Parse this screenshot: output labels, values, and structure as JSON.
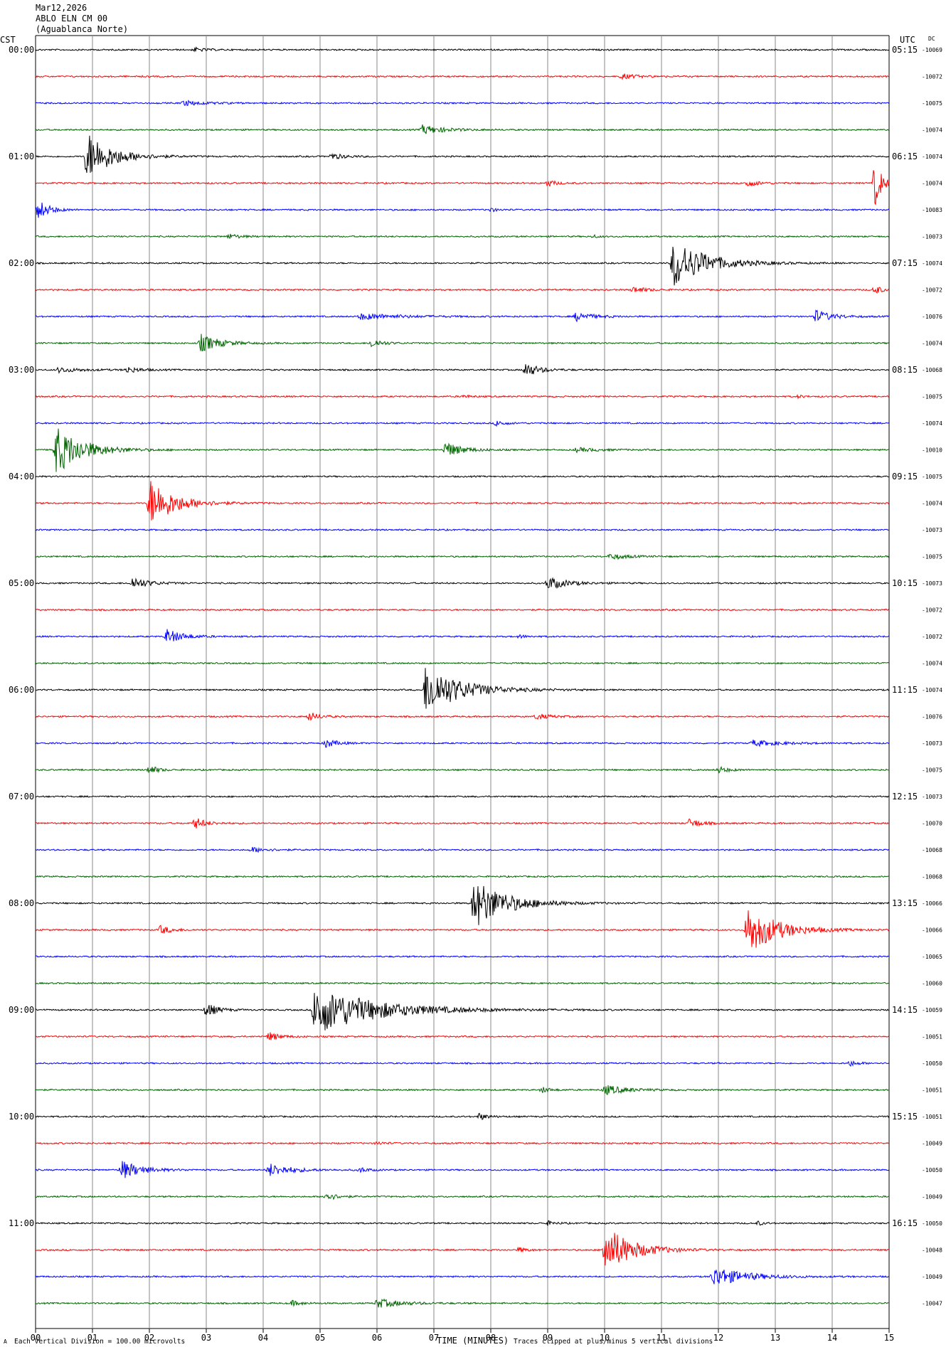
{
  "header": {
    "date": "Mar12,2026",
    "station": "ABLO ELN CM 00",
    "location": "(Aguablanca Norte)"
  },
  "left_tz_label": "CST",
  "right_tz_label": "UTC",
  "dc_label": "DC",
  "footer": {
    "scale": "Each Vertical Division =  100.00 microvolts",
    "xlabel": "TIME (MINUTES)",
    "clip_note": "Traces clipped at plus/minus 5 vertical divisions",
    "corner_mark": "A"
  },
  "chart_data": {
    "type": "line",
    "title": "",
    "xlabel": "TIME (MINUTES)",
    "ylabel": "",
    "xlim": [
      0,
      15
    ],
    "x_ticks": [
      "00",
      "01",
      "02",
      "03",
      "04",
      "05",
      "06",
      "07",
      "08",
      "09",
      "10",
      "11",
      "12",
      "13",
      "14",
      "15"
    ],
    "grid": true,
    "trace_colors": [
      "#000000",
      "#ff0000",
      "#0000ff",
      "#006400"
    ],
    "left_hour_labels": [
      "00:00",
      "01:00",
      "02:00",
      "03:00",
      "04:00",
      "05:00",
      "06:00",
      "07:00",
      "08:00",
      "09:00",
      "10:00",
      "11:00"
    ],
    "right_hour_labels": [
      "05:15",
      "06:15",
      "07:15",
      "08:15",
      "09:15",
      "10:15",
      "11:15",
      "12:15",
      "13:15",
      "14:15",
      "15:15",
      "16:15"
    ],
    "dc_offsets": [
      "-10069",
      "-10072",
      "-10075",
      "-10074",
      "-10074",
      "-10074",
      "-10083",
      "-10073",
      "-10074",
      "-10072",
      "-10076",
      "-10074",
      "-10068",
      "-10075",
      "-10074",
      "-10010",
      "-10075",
      "-10074",
      "-10073",
      "-10075",
      "-10073",
      "-10072",
      "-10072",
      "-10074",
      "-10074",
      "-10076",
      "-10073",
      "-10075",
      "-10073",
      "-10070",
      "-10068",
      "-10068",
      "-10066",
      "-10066",
      "-10065",
      "-10060",
      "-10059",
      "-10051",
      "-10050",
      "-10051",
      "-10051",
      "-10049",
      "-10050",
      "-10049",
      "-10050",
      "-10048",
      "-10049",
      "-10047"
    ],
    "events": [
      {
        "row": 0,
        "t": 2.8,
        "amp": 0.4,
        "dur": 0.4
      },
      {
        "row": 1,
        "t": 10.3,
        "amp": 0.5,
        "dur": 0.6
      },
      {
        "row": 2,
        "t": 2.6,
        "amp": 0.5,
        "dur": 0.8
      },
      {
        "row": 3,
        "t": 6.8,
        "amp": 0.9,
        "dur": 0.8
      },
      {
        "row": 4,
        "t": 0.9,
        "amp": 5.0,
        "dur": 0.9
      },
      {
        "row": 4,
        "t": 5.2,
        "amp": 0.6,
        "dur": 0.5
      },
      {
        "row": 5,
        "t": 9.0,
        "amp": 0.7,
        "dur": 0.3
      },
      {
        "row": 5,
        "t": 12.5,
        "amp": 0.8,
        "dur": 0.4
      },
      {
        "row": 5,
        "t": 14.75,
        "amp": 5.0,
        "dur": 0.25
      },
      {
        "row": 6,
        "t": 0.05,
        "amp": 2.0,
        "dur": 0.4
      },
      {
        "row": 6,
        "t": 8.0,
        "amp": 0.4,
        "dur": 0.2
      },
      {
        "row": 7,
        "t": 3.4,
        "amp": 0.5,
        "dur": 0.4
      },
      {
        "row": 7,
        "t": 9.8,
        "amp": 0.3,
        "dur": 0.2
      },
      {
        "row": 8,
        "t": 11.2,
        "amp": 5.0,
        "dur": 1.2
      },
      {
        "row": 9,
        "t": 10.5,
        "amp": 0.6,
        "dur": 0.5
      },
      {
        "row": 9,
        "t": 14.75,
        "amp": 1.2,
        "dur": 0.2
      },
      {
        "row": 10,
        "t": 5.7,
        "amp": 0.6,
        "dur": 1.5
      },
      {
        "row": 10,
        "t": 9.5,
        "amp": 0.9,
        "dur": 0.6
      },
      {
        "row": 10,
        "t": 13.7,
        "amp": 1.3,
        "dur": 0.6
      },
      {
        "row": 11,
        "t": 2.9,
        "amp": 1.8,
        "dur": 0.7
      },
      {
        "row": 11,
        "t": 5.9,
        "amp": 0.9,
        "dur": 0.4
      },
      {
        "row": 12,
        "t": 0.4,
        "amp": 0.5,
        "dur": 0.8
      },
      {
        "row": 12,
        "t": 1.6,
        "amp": 0.6,
        "dur": 0.5
      },
      {
        "row": 12,
        "t": 8.6,
        "amp": 1.5,
        "dur": 0.5
      },
      {
        "row": 13,
        "t": 7.5,
        "amp": 0.3,
        "dur": 0.3
      },
      {
        "row": 13,
        "t": 13.4,
        "amp": 0.3,
        "dur": 0.2
      },
      {
        "row": 14,
        "t": 8.1,
        "amp": 0.6,
        "dur": 0.3
      },
      {
        "row": 15,
        "t": 0.35,
        "amp": 5.0,
        "dur": 1.0
      },
      {
        "row": 15,
        "t": 7.2,
        "amp": 1.6,
        "dur": 0.6
      },
      {
        "row": 15,
        "t": 9.5,
        "amp": 0.4,
        "dur": 0.8
      },
      {
        "row": 17,
        "t": 2.0,
        "amp": 5.0,
        "dur": 0.9
      },
      {
        "row": 19,
        "t": 10.1,
        "amp": 0.6,
        "dur": 0.6
      },
      {
        "row": 20,
        "t": 1.7,
        "amp": 1.2,
        "dur": 0.6
      },
      {
        "row": 20,
        "t": 9.0,
        "amp": 1.3,
        "dur": 0.7
      },
      {
        "row": 22,
        "t": 2.3,
        "amp": 1.5,
        "dur": 0.6
      },
      {
        "row": 22,
        "t": 8.5,
        "amp": 0.3,
        "dur": 0.3
      },
      {
        "row": 24,
        "t": 6.85,
        "amp": 5.0,
        "dur": 1.3
      },
      {
        "row": 25,
        "t": 4.8,
        "amp": 0.9,
        "dur": 0.4
      },
      {
        "row": 25,
        "t": 8.8,
        "amp": 0.6,
        "dur": 0.5
      },
      {
        "row": 26,
        "t": 5.1,
        "amp": 0.9,
        "dur": 0.4
      },
      {
        "row": 26,
        "t": 12.6,
        "amp": 0.6,
        "dur": 1.0
      },
      {
        "row": 27,
        "t": 2.0,
        "amp": 1.0,
        "dur": 0.3
      },
      {
        "row": 27,
        "t": 12.0,
        "amp": 0.6,
        "dur": 0.4
      },
      {
        "row": 29,
        "t": 2.8,
        "amp": 1.2,
        "dur": 0.4
      },
      {
        "row": 29,
        "t": 11.5,
        "amp": 1.0,
        "dur": 0.4
      },
      {
        "row": 30,
        "t": 3.8,
        "amp": 0.5,
        "dur": 0.6
      },
      {
        "row": 32,
        "t": 7.7,
        "amp": 5.0,
        "dur": 1.2
      },
      {
        "row": 33,
        "t": 2.2,
        "amp": 0.9,
        "dur": 0.4
      },
      {
        "row": 33,
        "t": 12.5,
        "amp": 5.0,
        "dur": 1.1
      },
      {
        "row": 36,
        "t": 3.0,
        "amp": 1.5,
        "dur": 0.4
      },
      {
        "row": 36,
        "t": 4.9,
        "amp": 5.0,
        "dur": 2.2
      },
      {
        "row": 37,
        "t": 4.1,
        "amp": 0.9,
        "dur": 0.4
      },
      {
        "row": 38,
        "t": 14.3,
        "amp": 0.6,
        "dur": 0.3
      },
      {
        "row": 39,
        "t": 8.9,
        "amp": 0.6,
        "dur": 0.3
      },
      {
        "row": 39,
        "t": 10.0,
        "amp": 1.0,
        "dur": 0.8
      },
      {
        "row": 40,
        "t": 7.8,
        "amp": 0.7,
        "dur": 0.3
      },
      {
        "row": 41,
        "t": 6.0,
        "amp": 0.3,
        "dur": 0.3
      },
      {
        "row": 42,
        "t": 1.5,
        "amp": 2.0,
        "dur": 0.7
      },
      {
        "row": 42,
        "t": 4.1,
        "amp": 1.3,
        "dur": 0.8
      },
      {
        "row": 42,
        "t": 5.7,
        "amp": 0.5,
        "dur": 0.3
      },
      {
        "row": 43,
        "t": 5.1,
        "amp": 0.9,
        "dur": 0.4
      },
      {
        "row": 44,
        "t": 9.0,
        "amp": 0.4,
        "dur": 0.3
      },
      {
        "row": 44,
        "t": 12.7,
        "amp": 0.4,
        "dur": 0.2
      },
      {
        "row": 45,
        "t": 8.5,
        "amp": 0.5,
        "dur": 0.3
      },
      {
        "row": 45,
        "t": 10.0,
        "amp": 5.0,
        "dur": 1.0
      },
      {
        "row": 46,
        "t": 11.9,
        "amp": 2.0,
        "dur": 1.2
      },
      {
        "row": 47,
        "t": 4.5,
        "amp": 0.5,
        "dur": 0.4
      },
      {
        "row": 47,
        "t": 6.0,
        "amp": 0.9,
        "dur": 0.9
      }
    ]
  }
}
